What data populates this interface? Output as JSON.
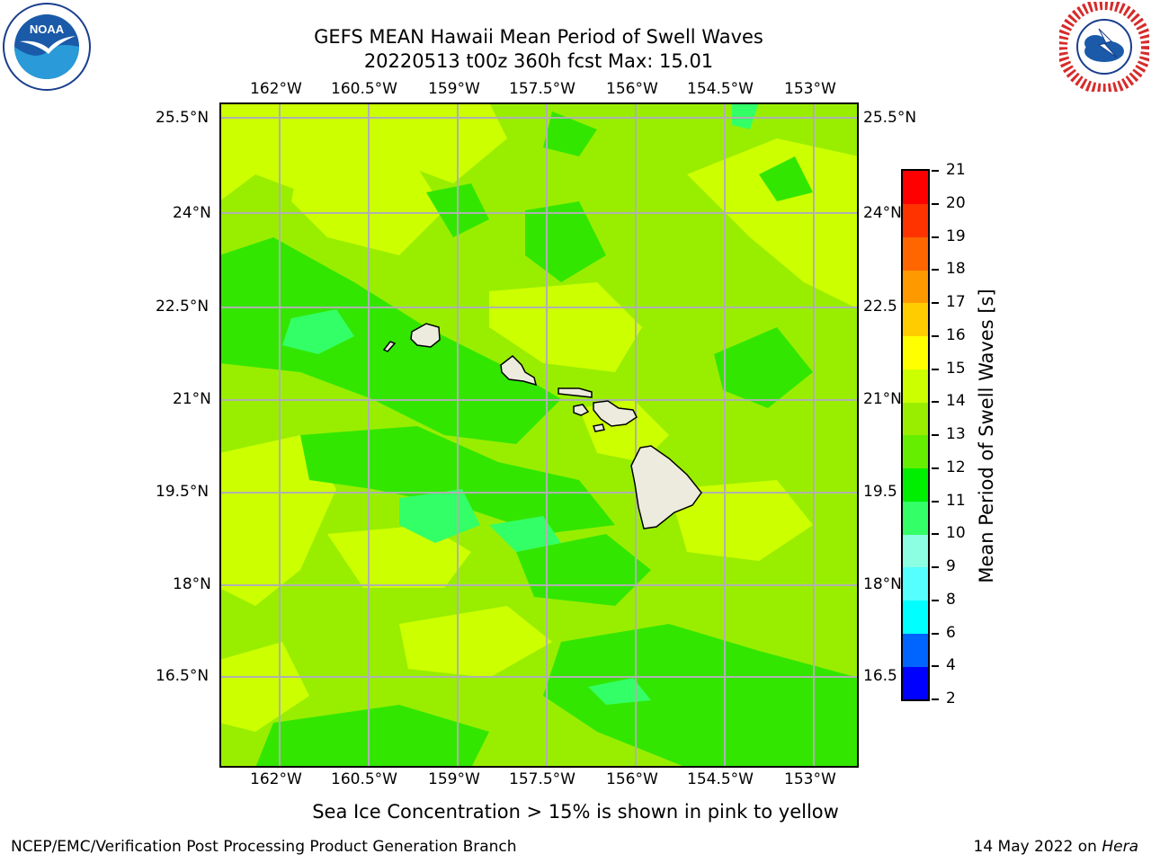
{
  "header": {
    "title_line1": "GEFS MEAN Hawaii Mean Period of Swell Waves",
    "title_line2": "20220513 t00z 360h fcst   Max: 15.01"
  },
  "logos": {
    "left": "noaa-logo",
    "left_text": "NOAA",
    "right": "national-weather-service-logo",
    "right_text": "NATIONAL WEATHER SERVICE"
  },
  "map": {
    "region": "Hawaii",
    "lon_labels": [
      "162°W",
      "160.5°W",
      "159°W",
      "157.5°W",
      "156°W",
      "154.5°W",
      "153°W"
    ],
    "lat_labels": [
      "25.5°N",
      "24°N",
      "22.5°N",
      "21°N",
      "19.5°N",
      "18°N",
      "16.5°N"
    ],
    "right_lat_labels": [
      "25.5°N",
      "24°N",
      "22.5",
      "21°N",
      "19.5",
      "18°N",
      "16.5"
    ],
    "grid": true,
    "land_color": "#ecebdd",
    "ocean_color": "#9bf000"
  },
  "colorbar": {
    "label": "Mean Period of Swell Waves [s]",
    "ticks": [
      "2",
      "4",
      "6",
      "8",
      "9",
      "10",
      "11",
      "12",
      "13",
      "14",
      "15",
      "16",
      "17",
      "18",
      "19",
      "20",
      "21"
    ],
    "colors": [
      "#0000ff",
      "#0064ff",
      "#00ffff",
      "#55ffff",
      "#8cffe3",
      "#33ff66",
      "#00ee00",
      "#66ee00",
      "#99ee00",
      "#ccff00",
      "#ffff00",
      "#ffcc00",
      "#ff9900",
      "#ff6600",
      "#ff3300",
      "#ff0000"
    ]
  },
  "footer": {
    "caption": "Sea Ice Concentration > 15% is shown in pink to yellow",
    "credit_left": "NCEP/EMC/Verification Post Processing Product Generation Branch",
    "credit_date": "14 May 2022 on",
    "credit_host": "Hera"
  }
}
